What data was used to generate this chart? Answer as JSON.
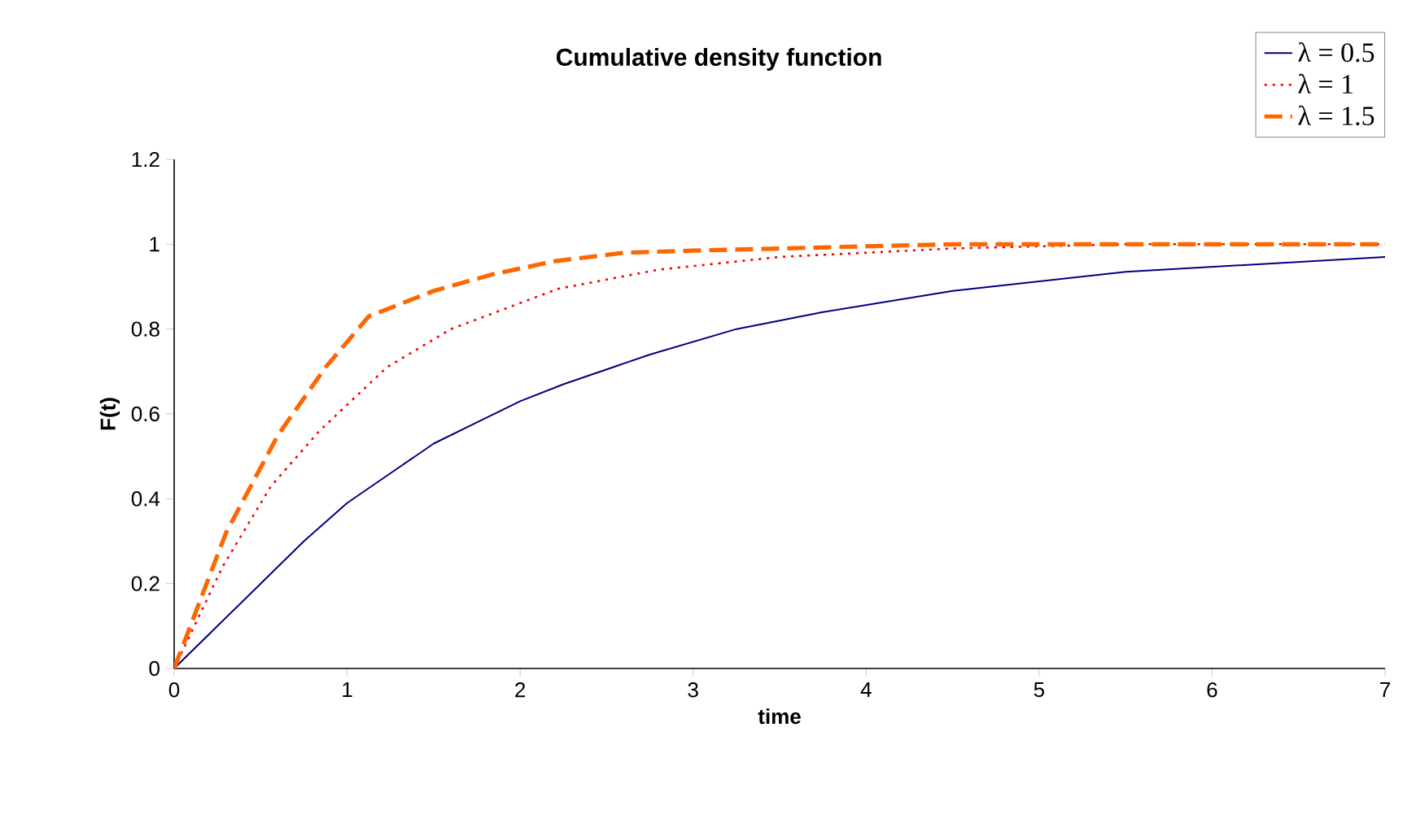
{
  "chart_data": {
    "type": "line",
    "title": "Cumulative density function",
    "xlabel": "time",
    "ylabel": "F(t)",
    "xlim": [
      0,
      7
    ],
    "ylim": [
      0,
      1.2
    ],
    "xticks": [
      0,
      1,
      2,
      3,
      4,
      5,
      6,
      7
    ],
    "yticks": [
      0,
      0.2,
      0.4,
      0.6,
      0.8,
      1,
      1.2
    ],
    "grid": false,
    "legend": "top right",
    "marker": "none",
    "series": [
      {
        "name": "λ = 0.5",
        "color": "#000080",
        "line_style": "solid",
        "x": [
          0,
          0.25,
          0.5,
          0.75,
          1,
          1.25,
          1.5,
          1.75,
          2,
          2.25,
          2.75,
          3.25,
          3.75,
          4.5,
          5.5,
          7
        ],
        "values": [
          0,
          0.1,
          0.2,
          0.3,
          0.39,
          0.46,
          0.53,
          0.58,
          0.63,
          0.67,
          0.74,
          0.8,
          0.84,
          0.89,
          0.935,
          0.97
        ]
      },
      {
        "name": "λ = 1",
        "color": "#ff0000",
        "line_style": "dotted",
        "x": [
          0,
          0.28,
          0.56,
          0.84,
          1.23,
          1.6,
          2.22,
          2.8,
          3.5,
          4.5,
          5.5,
          7
        ],
        "values": [
          0,
          0.24,
          0.43,
          0.56,
          0.71,
          0.8,
          0.895,
          0.94,
          0.97,
          0.99,
          1,
          1
        ]
      },
      {
        "name": "λ = 1.5",
        "color": "#ff6600",
        "line_style": "dashed",
        "x": [
          0,
          0.3,
          0.6,
          0.875,
          1.125,
          1.5,
          1.85,
          2.2,
          2.6,
          3,
          4.5,
          7
        ],
        "values": [
          0,
          0.32,
          0.55,
          0.71,
          0.83,
          0.89,
          0.93,
          0.96,
          0.98,
          0.985,
          1,
          1
        ]
      }
    ]
  }
}
